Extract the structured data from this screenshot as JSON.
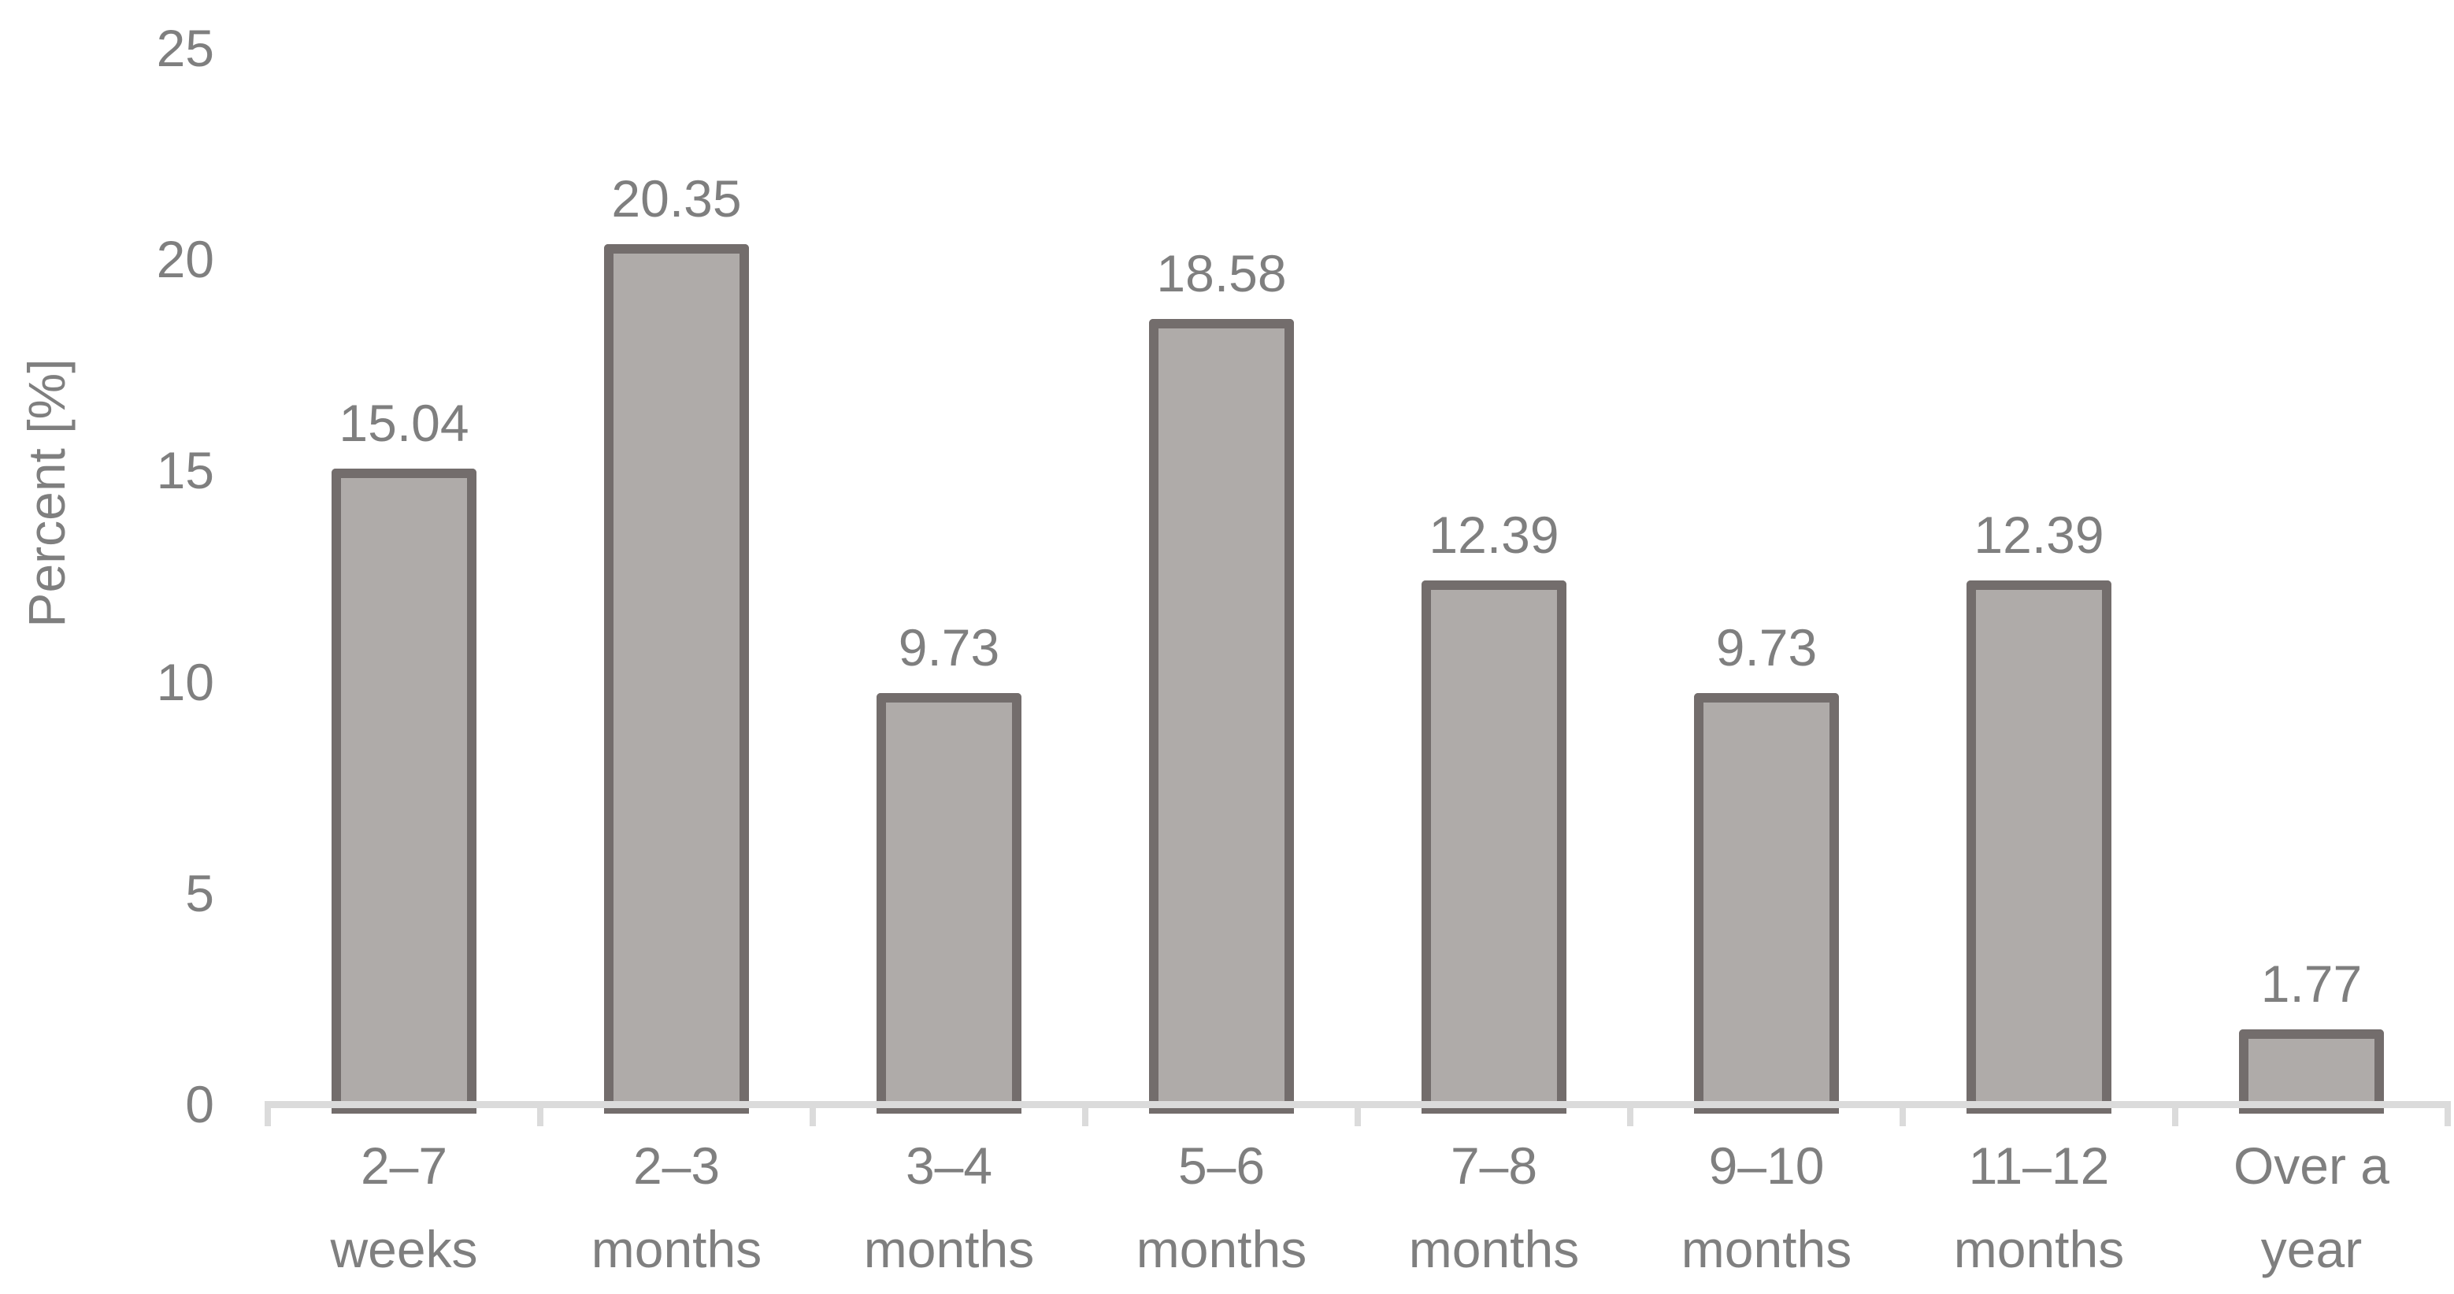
{
  "chart_data": {
    "type": "bar",
    "title": "",
    "xlabel": "",
    "ylabel": "Percent [%]",
    "categories": [
      "2–7 weeks",
      "2–3 months",
      "3–4 months",
      "5–6 months",
      "7–8 months",
      "9–10 months",
      "11–12 months",
      "Over a year"
    ],
    "category_lines": [
      [
        "2–7",
        "weeks"
      ],
      [
        "2–3",
        "months"
      ],
      [
        "3–4",
        "months"
      ],
      [
        "5–6",
        "months"
      ],
      [
        "7–8",
        "months"
      ],
      [
        "9–10",
        "months"
      ],
      [
        "11–12",
        "months"
      ],
      [
        "Over a",
        "year"
      ]
    ],
    "values": [
      15.04,
      20.35,
      9.73,
      18.58,
      12.39,
      9.73,
      12.39,
      1.77
    ],
    "value_labels": [
      "15.04",
      "20.35",
      "9.73",
      "18.58",
      "12.39",
      "9.73",
      "12.39",
      "1.77"
    ],
    "ylim": [
      0,
      25
    ],
    "yticks": [
      0,
      5,
      10,
      15,
      20,
      25
    ],
    "ytick_labels": [
      "0",
      "5",
      "10",
      "15",
      "20",
      "25"
    ],
    "grid": false,
    "legend": "none",
    "colors": {
      "bar_fill": "#AFABA9",
      "bar_border": "#736D6C",
      "axis_line": "#DBDBDB",
      "text": "#7F7F7F"
    }
  }
}
